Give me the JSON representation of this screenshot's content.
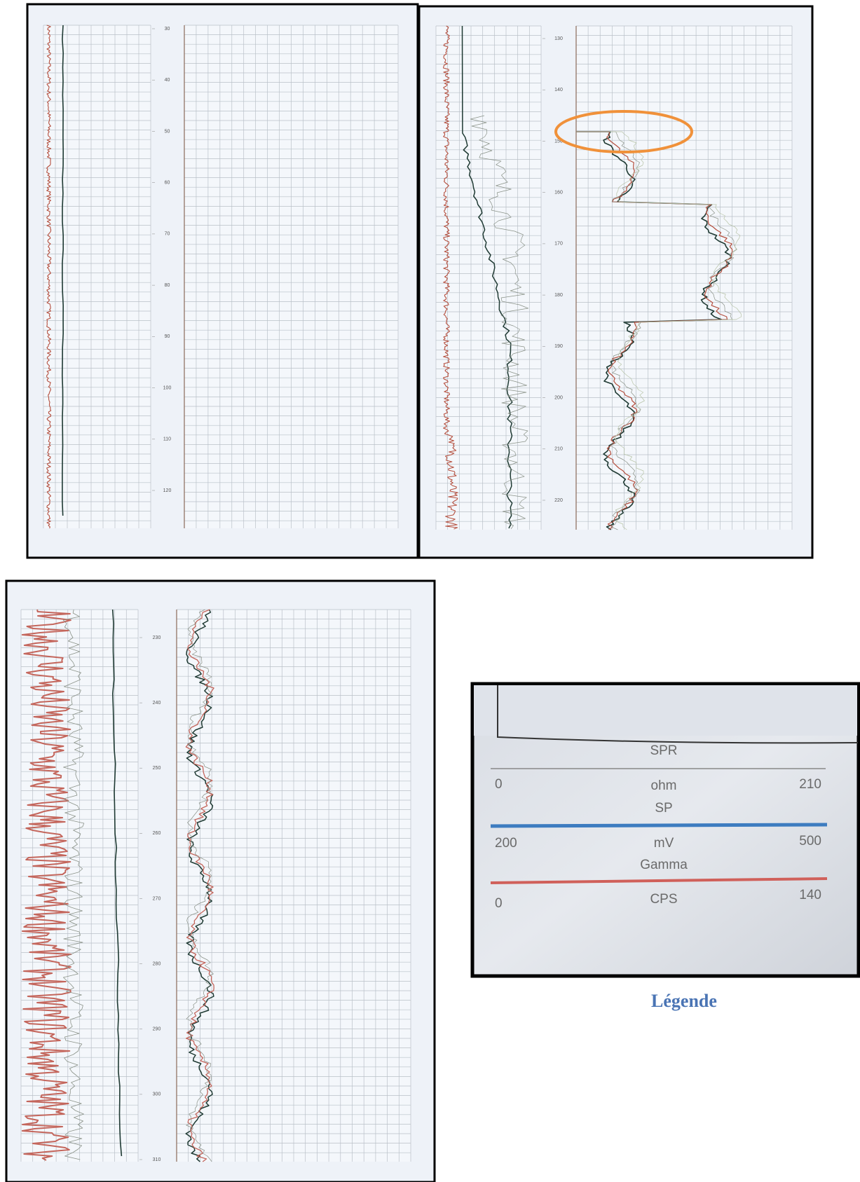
{
  "panels": [
    {
      "depth_ticks": [
        30,
        40,
        50,
        60,
        70,
        80,
        90,
        100,
        110,
        120
      ]
    },
    {
      "depth_ticks": [
        130,
        140,
        150,
        160,
        170,
        180,
        190,
        200,
        210,
        220
      ]
    },
    {
      "depth_ticks": [
        230,
        240,
        250,
        260,
        270,
        280,
        290,
        300,
        310
      ]
    }
  ],
  "legend": {
    "caption": "Légende",
    "curves": [
      {
        "name": "SPR",
        "min": 0,
        "unit": "ohm",
        "max": 210
      },
      {
        "name": "SP",
        "min": 200,
        "unit": "mV",
        "max": 500
      },
      {
        "name": "Gamma",
        "min": 0,
        "unit": "CPS",
        "max": 140
      }
    ]
  }
}
